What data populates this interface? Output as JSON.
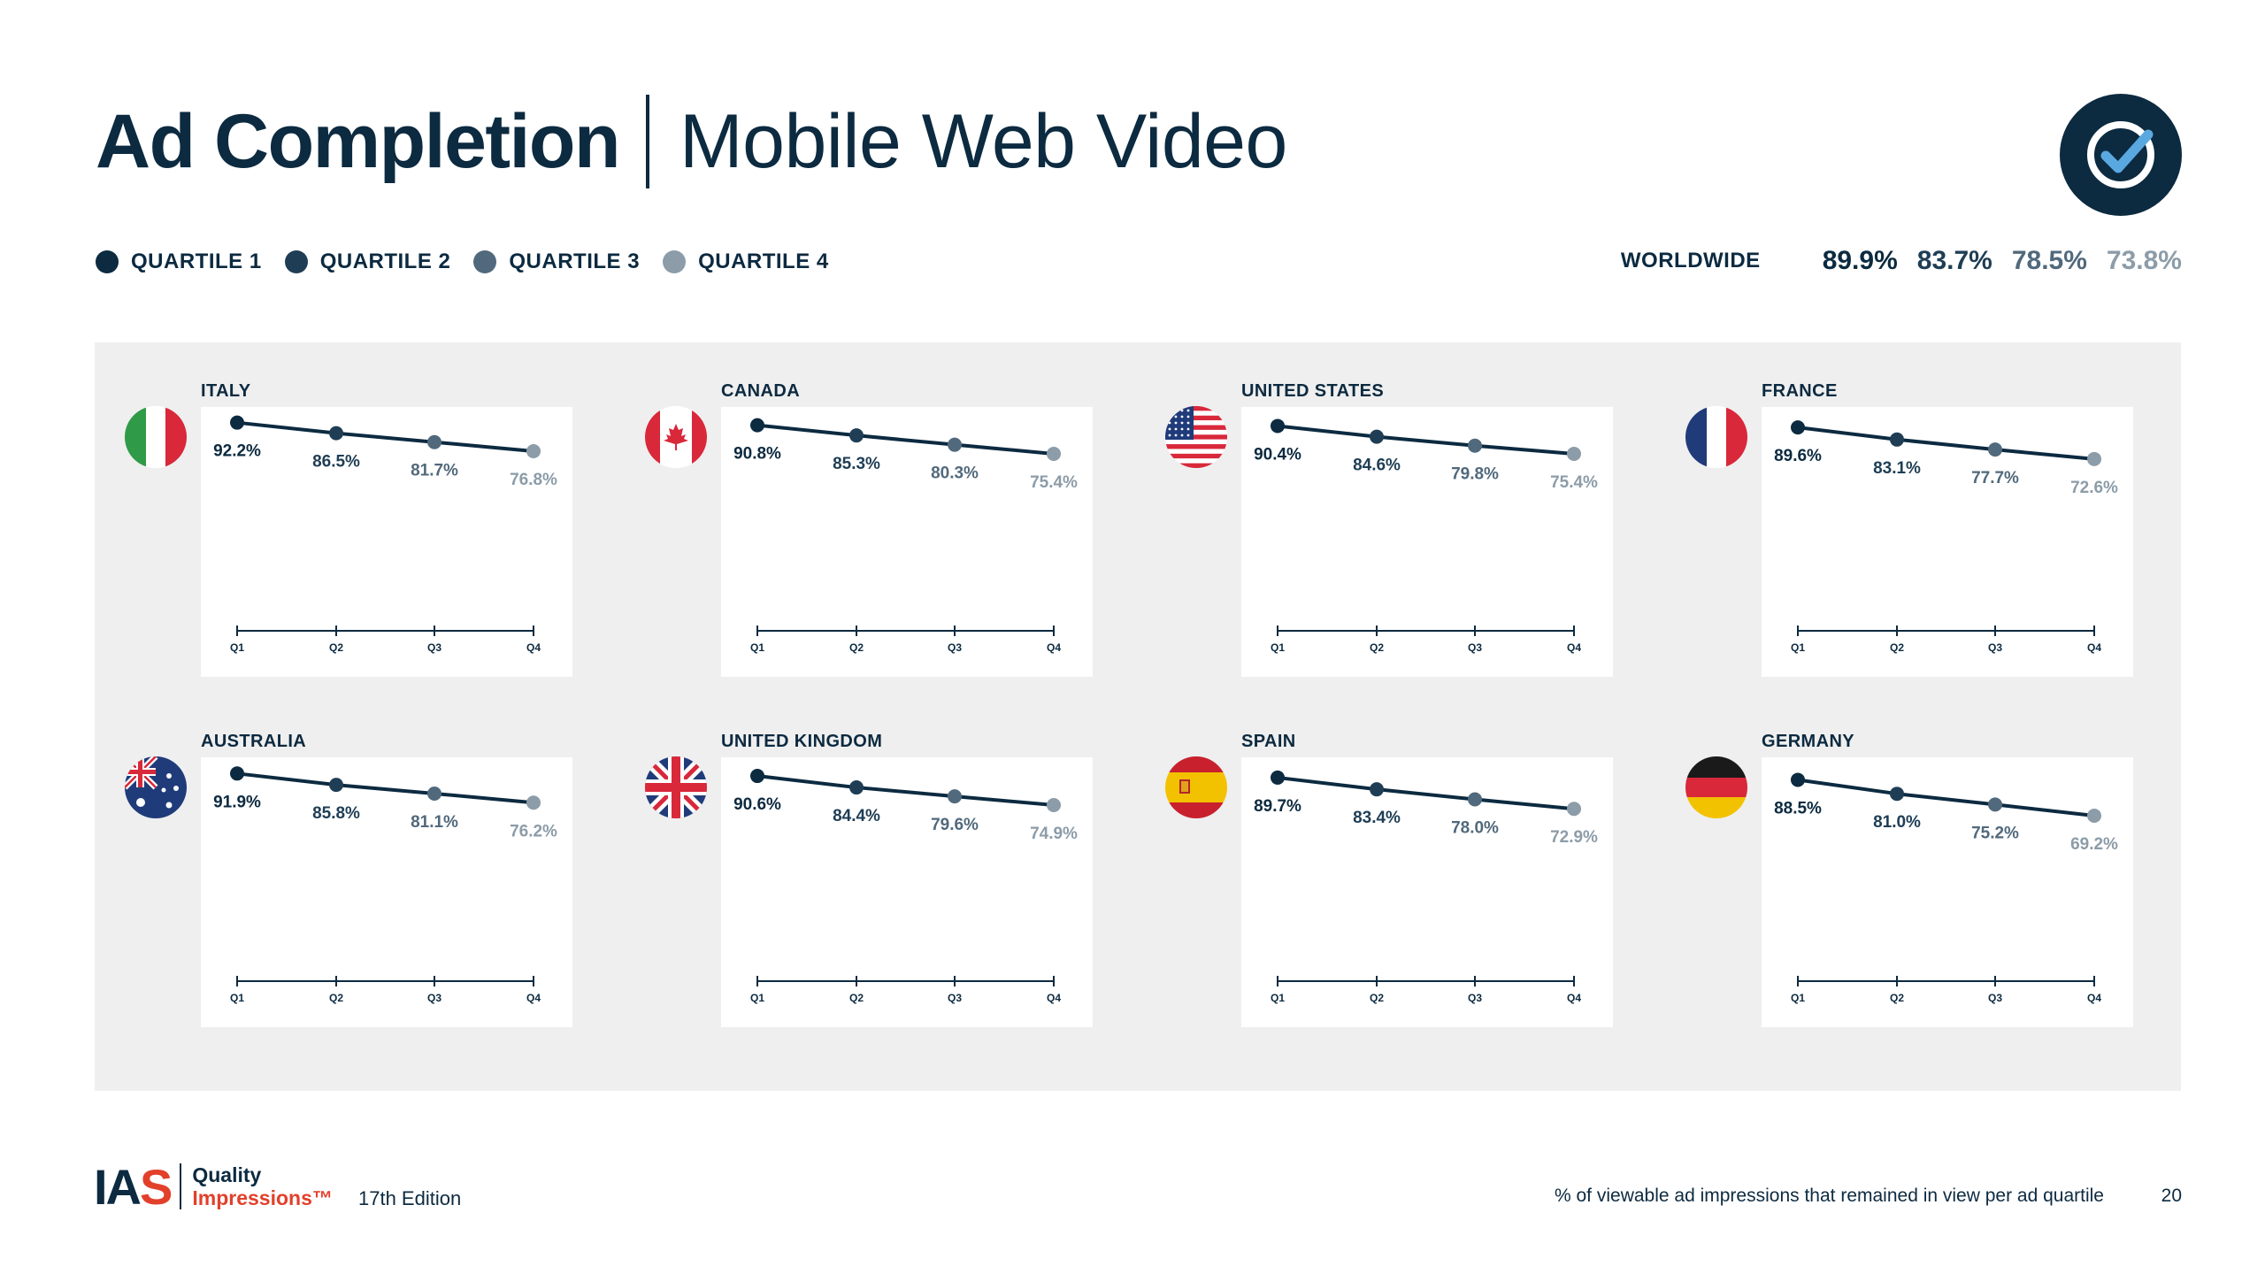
{
  "header": {
    "title_bold": "Ad Completion",
    "title_light": "Mobile Web Video",
    "badge_icon": "checkmark-badge-icon"
  },
  "legend": [
    {
      "label": "QUARTILE 1",
      "color": "#0c2a40"
    },
    {
      "label": "QUARTILE 2",
      "color": "#1f3e55"
    },
    {
      "label": "QUARTILE 3",
      "color": "#51697c"
    },
    {
      "label": "QUARTILE 4",
      "color": "#8c9ca8"
    }
  ],
  "worldwide": {
    "label": "WORLDWIDE",
    "values": [
      "89.9%",
      "83.7%",
      "78.5%",
      "73.8%"
    ]
  },
  "chart_data": {
    "type": "line",
    "x_categories": [
      "Q1",
      "Q2",
      "Q3",
      "Q4"
    ],
    "countries": [
      {
        "name": "ITALY",
        "flag": "italy-flag",
        "values": [
          92.2,
          86.5,
          81.7,
          76.8
        ],
        "labels": [
          "92.2%",
          "86.5%",
          "81.7%",
          "76.8%"
        ]
      },
      {
        "name": "CANADA",
        "flag": "canada-flag",
        "values": [
          90.8,
          85.3,
          80.3,
          75.4
        ],
        "labels": [
          "90.8%",
          "85.3%",
          "80.3%",
          "75.4%"
        ]
      },
      {
        "name": "UNITED STATES",
        "flag": "usa-flag",
        "values": [
          90.4,
          84.6,
          79.8,
          75.4
        ],
        "labels": [
          "90.4%",
          "84.6%",
          "79.8%",
          "75.4%"
        ]
      },
      {
        "name": "FRANCE",
        "flag": "france-flag",
        "values": [
          89.6,
          83.1,
          77.7,
          72.6
        ],
        "labels": [
          "89.6%",
          "83.1%",
          "77.7%",
          "72.6%"
        ]
      },
      {
        "name": "AUSTRALIA",
        "flag": "australia-flag",
        "values": [
          91.9,
          85.8,
          81.1,
          76.2
        ],
        "labels": [
          "91.9%",
          "85.8%",
          "81.1%",
          "76.2%"
        ]
      },
      {
        "name": "UNITED KINGDOM",
        "flag": "uk-flag",
        "values": [
          90.6,
          84.4,
          79.6,
          74.9
        ],
        "labels": [
          "90.6%",
          "84.4%",
          "79.6%",
          "74.9%"
        ]
      },
      {
        "name": "SPAIN",
        "flag": "spain-flag",
        "values": [
          89.7,
          83.4,
          78.0,
          72.9
        ],
        "labels": [
          "89.7%",
          "83.4%",
          "78.0%",
          "72.9%"
        ]
      },
      {
        "name": "GERMANY",
        "flag": "germany-flag",
        "values": [
          88.5,
          81.0,
          75.2,
          69.2
        ],
        "labels": [
          "88.5%",
          "81.0%",
          "75.2%",
          "69.2%"
        ]
      }
    ]
  },
  "footer": {
    "logo_text": "IAS",
    "logo_line1": "Quality",
    "logo_line2": "Impressions™",
    "edition": "17th Edition",
    "note": "% of viewable ad impressions that remained in view per ad quartile",
    "page": "20"
  }
}
